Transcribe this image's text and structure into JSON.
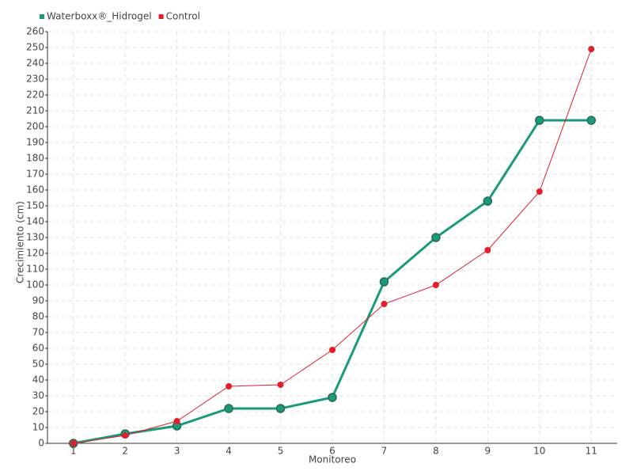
{
  "chart_data": {
    "type": "line",
    "x_label": "Monitoreo",
    "y_label": "Crecimiento (cm)",
    "categories": [
      "1",
      "2",
      "3",
      "4",
      "5",
      "6",
      "7",
      "8",
      "9",
      "10",
      "11"
    ],
    "series": [
      {
        "name": "Waterboxx®_Hidrogel",
        "color": "#1a9a7a",
        "values": [
          0,
          6,
          11,
          22,
          22,
          29,
          102,
          130,
          153,
          204,
          204
        ]
      },
      {
        "name": "Control",
        "color": "#e31e2a",
        "values": [
          0,
          5,
          14,
          36,
          37,
          59,
          88,
          100,
          122,
          159,
          249
        ]
      }
    ],
    "ylim": [
      0,
      260
    ],
    "yticks": [
      0,
      10,
      20,
      30,
      40,
      50,
      60,
      70,
      80,
      90,
      100,
      110,
      120,
      130,
      140,
      150,
      160,
      170,
      180,
      190,
      200,
      210,
      220,
      230,
      240,
      250,
      260
    ],
    "grid": true,
    "legend": "top-left"
  }
}
